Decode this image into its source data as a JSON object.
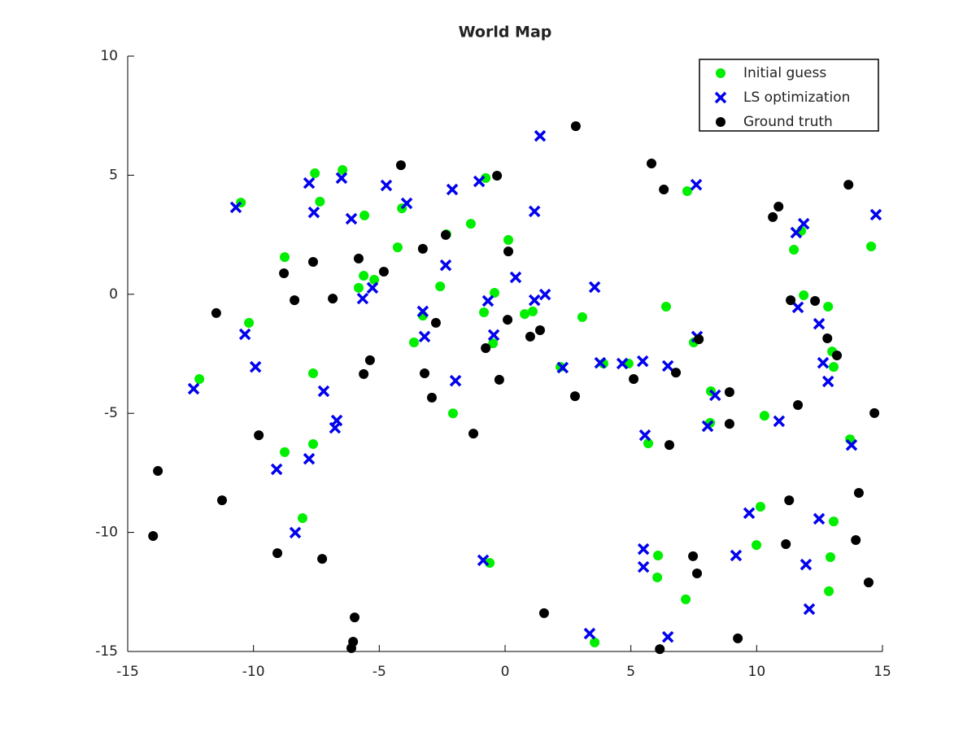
{
  "chart_data": {
    "type": "scatter",
    "title": "World Map",
    "xlim": [
      -15,
      15
    ],
    "xticks": [
      -15,
      -10,
      -5,
      0,
      5,
      10,
      15
    ],
    "ylim": [
      -15,
      10
    ],
    "yticks": [
      -15,
      -10,
      -5,
      0,
      5,
      10
    ],
    "legend": "northeast",
    "series": [
      {
        "name": "Initial guess",
        "color": "#00ee00",
        "marker": "circle",
        "x": [
          -10.5,
          -7.56,
          -6.46,
          -7.36,
          -5.59,
          -8.76,
          -5.62,
          -5.82,
          -5.2,
          -4.1,
          -4.27,
          -2.58,
          -2.33,
          -1.36,
          -0.77,
          0.13,
          -0.42,
          -0.84,
          0.78,
          1.1,
          -3.62,
          -3.27,
          -0.48,
          -10.18,
          -12.15,
          -7.63,
          -8.76,
          -7.63,
          -8.05,
          -2.07,
          -0.61,
          2.2,
          3.07,
          3.91,
          4.91,
          5.69,
          6.4,
          7.24,
          7.5,
          8.18,
          8.15,
          10.31,
          10.15,
          9.99,
          6.08,
          6.05,
          7.18,
          3.56,
          11.48,
          11.77,
          11.87,
          12.84,
          13.0,
          13.06,
          14.55,
          13.71,
          13.06,
          12.93,
          12.87
        ],
        "y": [
          3.85,
          5.08,
          5.22,
          3.89,
          3.31,
          1.56,
          0.78,
          0.27,
          0.61,
          3.61,
          1.97,
          0.33,
          2.52,
          2.96,
          4.88,
          2.28,
          0.06,
          -0.76,
          -0.83,
          -0.72,
          -2.02,
          -0.9,
          -2.06,
          -1.2,
          -3.56,
          -3.32,
          -6.63,
          -6.29,
          -9.4,
          -5.0,
          -11.28,
          -3.05,
          -0.96,
          -2.91,
          -2.91,
          -6.26,
          -0.52,
          4.33,
          -2.02,
          -4.07,
          -5.4,
          -5.1,
          -8.92,
          -10.53,
          -10.97,
          -11.89,
          -12.81,
          -14.62,
          1.87,
          2.66,
          -0.04,
          -0.52,
          -2.4,
          -3.05,
          2.01,
          -6.09,
          -9.54,
          -11.04,
          -12.47
        ]
      },
      {
        "name": "LS optimization",
        "color": "#0000ee",
        "marker": "x",
        "x": [
          -10.7,
          -7.79,
          -6.5,
          -7.6,
          -6.11,
          -4.72,
          -3.91,
          -2.1,
          -1.03,
          1.39,
          1.17,
          -5.27,
          -5.66,
          -2.36,
          -3.27,
          -3.2,
          -0.68,
          0.42,
          1.17,
          1.59,
          -0.45,
          3.56,
          -10.34,
          -9.92,
          -12.38,
          -7.21,
          -6.69,
          -6.76,
          -9.08,
          -7.79,
          -8.34,
          -1.97,
          2.29,
          3.78,
          4.66,
          5.47,
          6.47,
          7.63,
          7.6,
          8.35,
          8.05,
          10.89,
          9.7,
          9.18,
          5.5,
          5.5,
          5.56,
          -0.87,
          3.36,
          6.47,
          11.87,
          11.57,
          11.64,
          12.48,
          12.64,
          12.84,
          14.74,
          13.77,
          12.48,
          11.96,
          12.09
        ],
        "y": [
          3.65,
          4.67,
          4.88,
          3.44,
          3.17,
          4.57,
          3.82,
          4.4,
          4.74,
          6.65,
          3.48,
          0.27,
          -0.18,
          1.22,
          -0.72,
          -1.78,
          -0.28,
          0.71,
          -0.25,
          -0.01,
          -1.71,
          0.3,
          -1.68,
          -3.05,
          -3.97,
          -4.07,
          -5.3,
          -5.61,
          -7.35,
          -6.91,
          -10.01,
          -3.63,
          -3.08,
          -2.88,
          -2.91,
          -2.81,
          -3.01,
          -1.78,
          4.6,
          -4.24,
          -5.54,
          -5.33,
          -9.19,
          -10.97,
          -10.7,
          -11.45,
          -5.92,
          -11.17,
          -14.25,
          -14.39,
          2.96,
          2.59,
          -0.55,
          -1.24,
          -2.88,
          -3.66,
          3.34,
          -6.33,
          -9.43,
          -11.35,
          -13.22
        ]
      },
      {
        "name": "Ground truth",
        "color": "#000000",
        "marker": "circle",
        "x": [
          2.81,
          -4.14,
          -0.32,
          5.82,
          6.31,
          13.65,
          10.87,
          10.64,
          -5.82,
          -7.63,
          -8.79,
          -4.82,
          -3.27,
          0.13,
          -2.36,
          -11.48,
          -8.37,
          -6.85,
          -2.75,
          0.1,
          1.0,
          1.39,
          -0.77,
          -5.37,
          -5.62,
          -3.2,
          -0.23,
          -2.91,
          2.78,
          5.11,
          6.79,
          7.7,
          11.35,
          12.32,
          12.81,
          13.19,
          11.64,
          8.92,
          8.92,
          6.53,
          14.68,
          -9.79,
          -13.8,
          -11.25,
          -13.99,
          -9.05,
          -7.27,
          -1.26,
          1.55,
          7.47,
          7.63,
          11.16,
          11.29,
          14.06,
          13.94,
          14.45,
          9.25,
          6.15,
          -5.98,
          -6.04,
          -6.11
        ],
        "y": [
          7.06,
          5.42,
          4.98,
          5.49,
          4.4,
          4.6,
          3.68,
          3.24,
          1.5,
          1.36,
          0.88,
          0.95,
          1.91,
          1.8,
          2.49,
          -0.79,
          -0.25,
          -0.18,
          -1.2,
          -1.07,
          -1.78,
          -1.51,
          -2.26,
          -2.77,
          -3.35,
          -3.32,
          -3.59,
          -4.34,
          -4.28,
          -3.56,
          -3.29,
          -1.89,
          -0.25,
          -0.28,
          -1.85,
          -2.57,
          -4.65,
          -4.11,
          -5.44,
          -6.33,
          -4.99,
          -5.92,
          -7.42,
          -8.65,
          -10.15,
          -10.87,
          -11.11,
          -5.85,
          -13.39,
          -11.0,
          -11.72,
          -10.49,
          -8.65,
          -8.34,
          -10.32,
          -12.1,
          -14.45,
          -14.9,
          -13.57,
          -14.59,
          -14.86
        ]
      }
    ]
  }
}
